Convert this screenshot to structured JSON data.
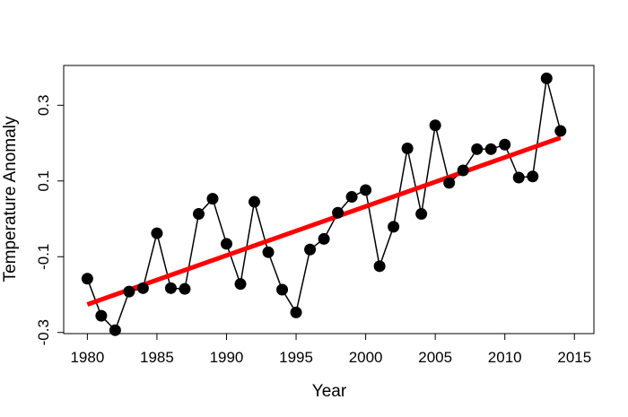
{
  "chart_data": {
    "type": "line",
    "title": "",
    "xlabel": "Year",
    "ylabel": "Temperature Anomaly",
    "xlim": [
      1978.3,
      2016.4
    ],
    "ylim": [
      -0.303,
      0.405
    ],
    "xticks": [
      1980,
      1985,
      1990,
      1995,
      2000,
      2005,
      2010,
      2015
    ],
    "xtick_labels": [
      "1980",
      "1985",
      "1990",
      "1995",
      "2000",
      "2005",
      "2010",
      "2015"
    ],
    "yticks": [
      -0.3,
      -0.1,
      0.1,
      0.3
    ],
    "ytick_labels": [
      "-0.3",
      "-0.1",
      "0.1",
      "0.3"
    ],
    "grid": false,
    "series": [
      {
        "name": "Temperature Anomaly",
        "style": "line-with-points",
        "color": "#000000",
        "x": [
          1980,
          1981,
          1982,
          1983,
          1984,
          1985,
          1986,
          1987,
          1988,
          1989,
          1990,
          1991,
          1992,
          1993,
          1994,
          1995,
          1996,
          1997,
          1998,
          1999,
          2000,
          2001,
          2002,
          2003,
          2004,
          2005,
          2006,
          2007,
          2008,
          2009,
          2010,
          2011,
          2012,
          2013,
          2014
        ],
        "y": [
          -0.158,
          -0.256,
          -0.294,
          -0.192,
          -0.183,
          -0.038,
          -0.183,
          -0.185,
          0.013,
          0.053,
          -0.066,
          -0.172,
          0.045,
          -0.088,
          -0.187,
          -0.247,
          -0.081,
          -0.053,
          0.016,
          0.058,
          0.076,
          -0.125,
          -0.021,
          0.186,
          0.013,
          0.247,
          0.095,
          0.128,
          0.184,
          0.184,
          0.196,
          0.109,
          0.112,
          0.371,
          0.232
        ]
      },
      {
        "name": "Linear trend",
        "style": "line",
        "color": "#ff0000",
        "x": [
          1980,
          2014
        ],
        "y": [
          -0.226,
          0.214
        ]
      }
    ]
  }
}
